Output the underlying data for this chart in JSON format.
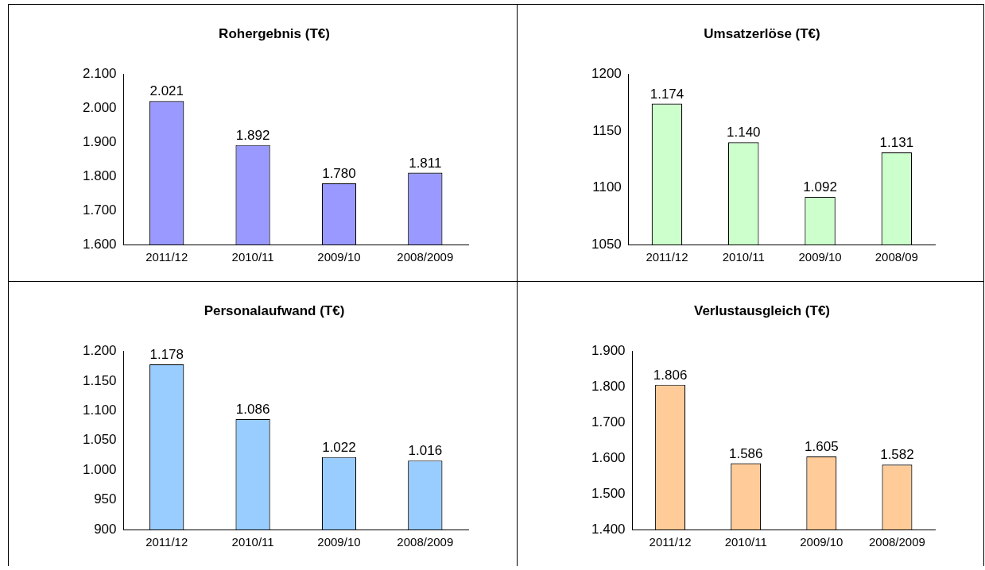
{
  "chart_data": [
    {
      "type": "bar",
      "title": "Rohergebnis (T€)",
      "categories": [
        "2011/12",
        "2010/11",
        "2009/10",
        "2008/2009"
      ],
      "values": [
        2021,
        1892,
        1780,
        1811
      ],
      "color": "#9999ff",
      "value_labels": [
        "2.021",
        "1.892",
        "1.780",
        "1.811"
      ],
      "ylim": [
        1600,
        2100
      ],
      "yticks": [
        {
          "value": 1600,
          "label": "1.600"
        },
        {
          "value": 1700,
          "label": "1.700"
        },
        {
          "value": 1800,
          "label": "1.800"
        },
        {
          "value": 1900,
          "label": "1.900"
        },
        {
          "value": 2000,
          "label": "2.000"
        },
        {
          "value": 2100,
          "label": "2.100"
        }
      ],
      "grid": false,
      "legend": false
    },
    {
      "type": "bar",
      "title": "Umsatzerlöse (T€)",
      "categories": [
        "2011/12",
        "2010/11",
        "2009/10",
        "2008/09"
      ],
      "values": [
        1174,
        1140,
        1092,
        1131
      ],
      "color": "#ccffcc",
      "value_labels": [
        "1.174",
        "1.140",
        "1.092",
        "1.131"
      ],
      "ylim": [
        1050,
        1200
      ],
      "yticks": [
        1050,
        1100,
        1150,
        1200
      ],
      "grid": false,
      "legend": false
    },
    {
      "type": "bar",
      "title": "Personalaufwand (T€)",
      "categories": [
        "2011/12",
        "2010/11",
        "2009/10",
        "2008/2009"
      ],
      "values": [
        1178,
        1086,
        1022,
        1016
      ],
      "color": "#99ccff",
      "value_labels": [
        "1.178",
        "1.086",
        "1.022",
        "1.016"
      ],
      "ylim": [
        900,
        1200
      ],
      "yticks": [
        {
          "value": 900,
          "label": "900"
        },
        {
          "value": 950,
          "label": "950"
        },
        {
          "value": 1000,
          "label": "1.000"
        },
        {
          "value": 1050,
          "label": "1.050"
        },
        {
          "value": 1100,
          "label": "1.100"
        },
        {
          "value": 1150,
          "label": "1.150"
        },
        {
          "value": 1200,
          "label": "1.200"
        }
      ],
      "grid": false,
      "legend": false
    },
    {
      "type": "bar",
      "title": "Verlustausgleich (T€)",
      "categories": [
        "2011/12",
        "2010/11",
        "2009/10",
        "2008/2009"
      ],
      "values": [
        1806,
        1586,
        1605,
        1582
      ],
      "color": "#ffcc99",
      "value_labels": [
        "1.806",
        "1.586",
        "1.605",
        "1.582"
      ],
      "ylim": [
        1400,
        1900
      ],
      "yticks": [
        {
          "value": 1400,
          "label": "1.400"
        },
        {
          "value": 1500,
          "label": "1.500"
        },
        {
          "value": 1600,
          "label": "1.600"
        },
        {
          "value": 1700,
          "label": "1.700"
        },
        {
          "value": 1800,
          "label": "1.800"
        },
        {
          "value": 1900,
          "label": "1.900"
        }
      ],
      "grid": false,
      "legend": false
    }
  ]
}
